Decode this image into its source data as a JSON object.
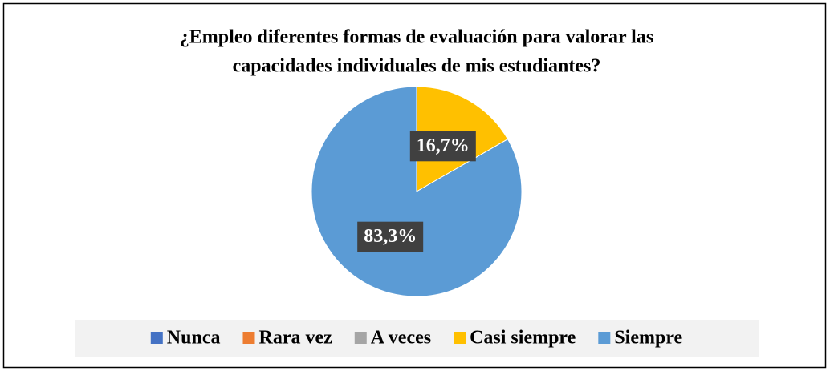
{
  "chart_data": {
    "type": "pie",
    "title": "¿Empleo diferentes formas de evaluación para valorar las capacidades individuales de mis estudiantes?",
    "title_lines": [
      "¿Empleo diferentes formas de evaluación para valorar las",
      "capacidades individuales de mis estudiantes?"
    ],
    "categories": [
      "Nunca",
      "Rara vez",
      "A veces",
      "Casi siempre",
      "Siempre"
    ],
    "values": [
      0,
      0,
      0,
      16.7,
      83.3
    ],
    "value_labels": [
      null,
      null,
      null,
      "16,7%",
      "83,3%"
    ],
    "colors": [
      "#4472C4",
      "#ED7D31",
      "#A5A5A5",
      "#FFC000",
      "#5B9BD5"
    ],
    "legend": "bottom"
  }
}
